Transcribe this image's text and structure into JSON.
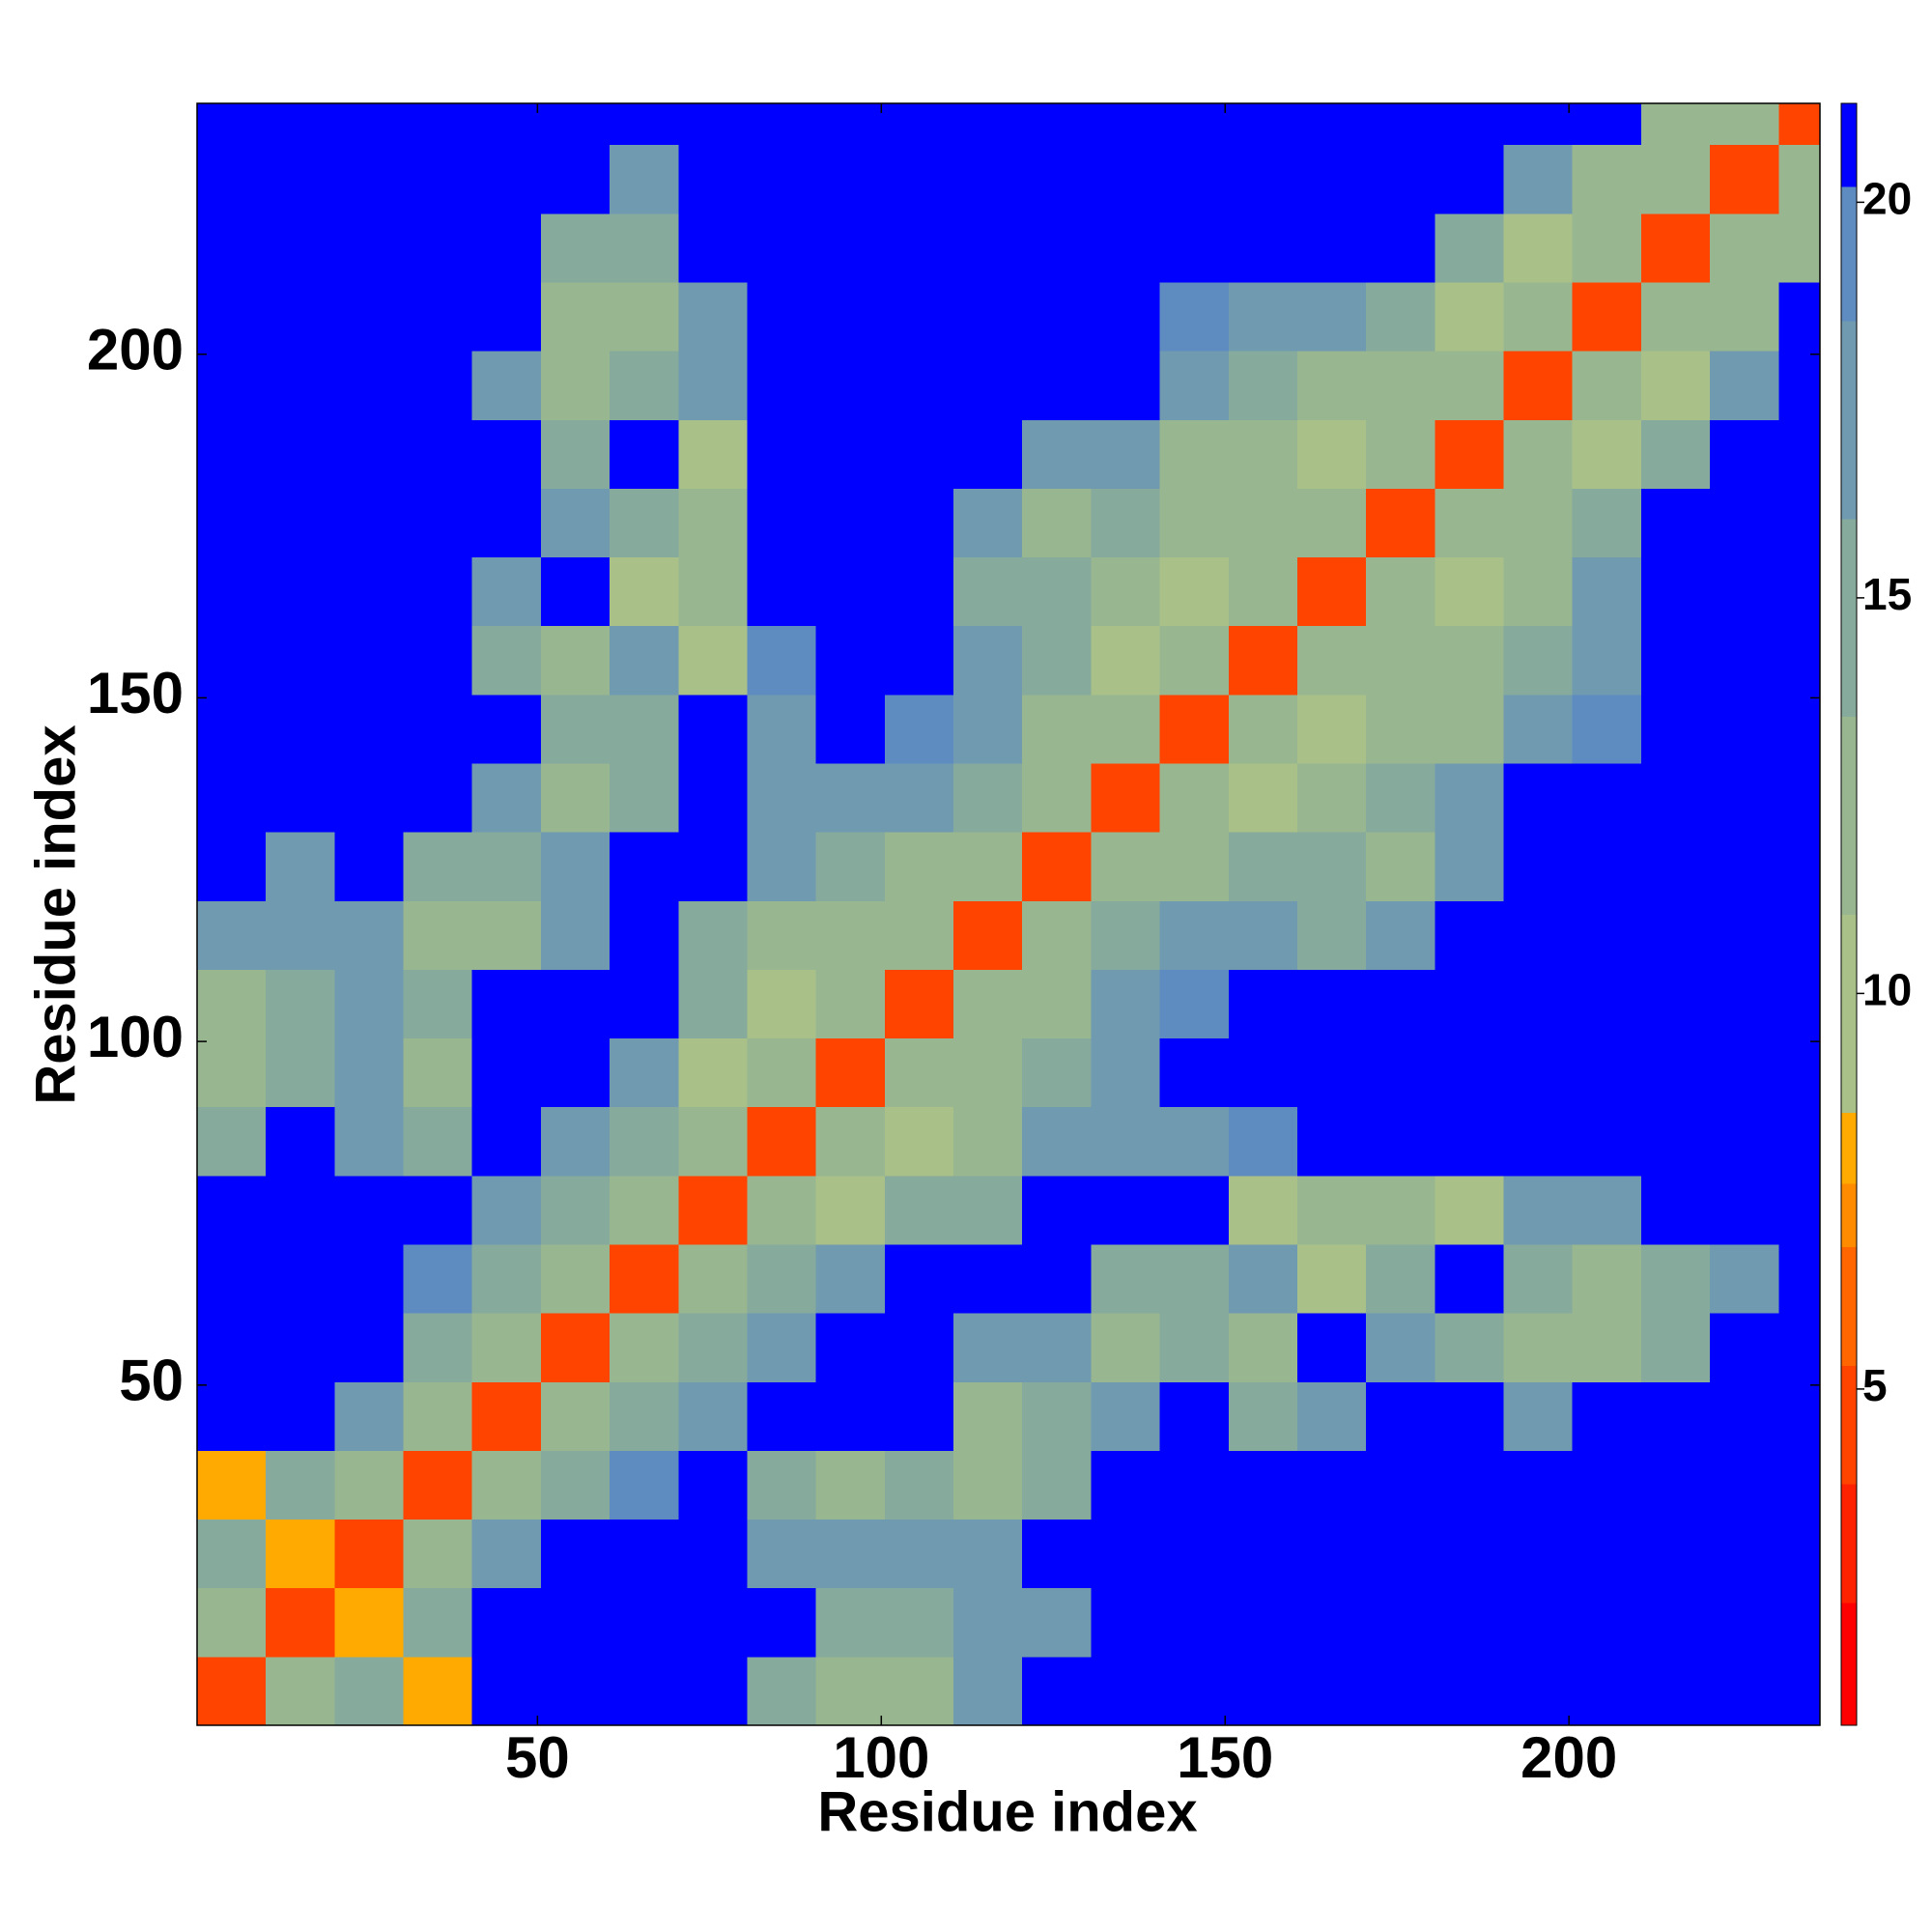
{
  "chart_data": {
    "type": "heatmap",
    "xlabel": "Residue index",
    "ylabel": "Residue index",
    "xbins": [
      0.5,
      10.5,
      20.5,
      30.5,
      40.5,
      50.5,
      60.5,
      70.5,
      80.5,
      90.5,
      100.5,
      110.5,
      120.5,
      130.5,
      140.5,
      150.5,
      160.5,
      170.5,
      180.5,
      190.5,
      200.5,
      210.5,
      220.5,
      230.5,
      236.5
    ],
    "ybins": [
      0.5,
      10.5,
      20.5,
      30.5,
      40.5,
      50.5,
      60.5,
      70.5,
      80.5,
      90.5,
      100.5,
      110.5,
      120.5,
      130.5,
      140.5,
      150.5,
      160.5,
      170.5,
      180.5,
      190.5,
      200.5,
      210.5,
      220.5,
      230.5,
      236.5
    ],
    "xlim": [
      0.5,
      236.5
    ],
    "ylim": [
      0.5,
      236.5
    ],
    "xticks": [
      50,
      100,
      150,
      200
    ],
    "yticks": [
      50,
      100,
      150,
      200
    ],
    "z": [
      [
        4,
        12,
        14,
        8,
        21,
        21,
        21,
        21,
        15,
        12,
        12,
        17,
        21,
        21,
        21,
        21,
        21,
        21,
        21,
        21,
        21,
        21,
        21,
        21
      ],
      [
        12,
        4,
        8,
        15,
        21,
        21,
        21,
        21,
        21,
        14,
        15,
        16,
        18,
        21,
        21,
        21,
        21,
        21,
        21,
        21,
        21,
        21,
        21,
        21
      ],
      [
        14,
        8,
        4,
        12,
        17,
        21,
        21,
        21,
        16,
        16,
        17,
        17,
        21,
        21,
        21,
        21,
        21,
        21,
        21,
        21,
        21,
        21,
        21,
        21
      ],
      [
        8,
        15,
        12,
        4,
        12,
        15,
        19,
        21,
        14,
        13,
        15,
        12,
        15,
        21,
        21,
        21,
        21,
        21,
        21,
        21,
        21,
        21,
        21,
        21
      ],
      [
        21,
        21,
        17,
        12,
        4,
        12,
        15,
        17,
        21,
        21,
        21,
        13,
        15,
        17,
        21,
        15,
        16,
        21,
        21,
        17,
        21,
        21,
        21,
        21
      ],
      [
        21,
        21,
        21,
        15,
        12,
        4,
        12,
        14,
        17,
        21,
        21,
        16,
        17,
        12,
        14,
        12,
        21,
        16,
        14,
        12,
        13,
        15,
        21,
        21
      ],
      [
        21,
        21,
        21,
        19,
        15,
        12,
        4,
        12,
        15,
        18,
        21,
        21,
        21,
        14,
        15,
        17,
        10,
        14,
        21,
        14,
        12,
        14,
        18,
        21
      ],
      [
        21,
        21,
        21,
        21,
        17,
        14,
        12,
        4,
        12,
        10,
        15,
        14,
        21,
        21,
        21,
        10,
        13,
        13,
        10,
        16,
        16,
        21,
        21,
        21
      ],
      [
        15,
        21,
        16,
        14,
        21,
        17,
        15,
        12,
        4,
        12,
        10,
        13,
        16,
        17,
        17,
        19,
        21,
        21,
        21,
        21,
        21,
        21,
        21,
        21
      ],
      [
        12,
        14,
        16,
        13,
        21,
        21,
        18,
        10,
        12,
        4,
        12,
        12,
        14,
        18,
        21,
        21,
        21,
        21,
        21,
        21,
        21,
        21,
        21,
        21
      ],
      [
        12,
        15,
        17,
        15,
        21,
        21,
        21,
        15,
        10,
        12,
        4,
        12,
        12,
        17,
        19,
        21,
        21,
        21,
        21,
        21,
        21,
        21,
        21,
        21
      ],
      [
        17,
        16,
        17,
        12,
        13,
        16,
        21,
        14,
        13,
        12,
        12,
        4,
        12,
        14,
        16,
        16,
        15,
        16,
        21,
        21,
        21,
        21,
        21,
        21
      ],
      [
        21,
        18,
        21,
        15,
        15,
        17,
        21,
        21,
        16,
        14,
        12,
        12,
        4,
        12,
        12,
        14,
        14,
        12,
        17,
        21,
        21,
        21,
        21,
        21
      ],
      [
        21,
        21,
        21,
        21,
        17,
        12,
        14,
        21,
        17,
        18,
        17,
        14,
        12,
        4,
        12,
        10,
        13,
        14,
        16,
        21,
        21,
        21,
        21,
        21
      ],
      [
        21,
        21,
        21,
        21,
        21,
        14,
        15,
        21,
        17,
        21,
        19,
        16,
        12,
        12,
        4,
        12,
        10,
        12,
        13,
        17,
        19,
        21,
        21,
        21
      ],
      [
        21,
        21,
        21,
        21,
        15,
        12,
        17,
        10,
        19,
        21,
        21,
        16,
        14,
        10,
        12,
        4,
        12,
        11,
        13,
        15,
        16,
        21,
        21,
        21
      ],
      [
        21,
        21,
        21,
        21,
        16,
        21,
        10,
        13,
        21,
        21,
        21,
        15,
        14,
        13,
        10,
        12,
        4,
        12,
        10,
        13,
        16,
        21,
        21,
        21
      ],
      [
        21,
        21,
        21,
        21,
        21,
        16,
        14,
        13,
        21,
        21,
        21,
        16,
        12,
        14,
        12,
        11,
        12,
        4,
        12,
        11,
        15,
        21,
        21,
        21
      ],
      [
        21,
        21,
        21,
        21,
        21,
        14,
        21,
        10,
        21,
        21,
        21,
        21,
        17,
        16,
        13,
        13,
        10,
        12,
        4,
        12,
        10,
        14,
        21,
        21
      ],
      [
        21,
        21,
        21,
        21,
        17,
        12,
        14,
        16,
        21,
        21,
        21,
        21,
        21,
        21,
        17,
        15,
        13,
        11,
        12,
        4,
        12,
        10,
        16,
        21
      ],
      [
        21,
        21,
        21,
        21,
        21,
        13,
        12,
        16,
        21,
        21,
        21,
        21,
        21,
        21,
        19,
        16,
        16,
        15,
        10,
        12,
        4,
        12,
        11,
        21
      ],
      [
        21,
        21,
        21,
        21,
        21,
        15,
        14,
        21,
        21,
        21,
        21,
        21,
        21,
        21,
        21,
        21,
        21,
        21,
        14,
        10,
        12,
        4,
        12,
        12
      ],
      [
        21,
        21,
        21,
        21,
        21,
        21,
        18,
        21,
        21,
        21,
        21,
        21,
        21,
        21,
        21,
        21,
        21,
        21,
        21,
        16,
        11,
        12,
        4,
        12
      ],
      [
        21,
        21,
        21,
        21,
        21,
        21,
        21,
        21,
        21,
        21,
        21,
        21,
        21,
        21,
        21,
        21,
        21,
        21,
        21,
        21,
        21,
        12,
        12,
        4
      ]
    ],
    "colorbar": {
      "lim": [
        0.75,
        21.25
      ],
      "ticks": [
        5,
        10,
        15,
        20
      ],
      "stops": [
        {
          "value": 0.75,
          "color": "#ff0000"
        },
        {
          "value": 2.3,
          "color": "#ff2200"
        },
        {
          "value": 3.8,
          "color": "#ff4400"
        },
        {
          "value": 5.3,
          "color": "#ff6600"
        },
        {
          "value": 6.8,
          "color": "#ff8c00"
        },
        {
          "value": 7.6,
          "color": "#ffaa00"
        },
        {
          "value": 8.5,
          "color": "#a9c088"
        },
        {
          "value": 11,
          "color": "#98b690"
        },
        {
          "value": 13.5,
          "color": "#86aa9c"
        },
        {
          "value": 16,
          "color": "#709ab0"
        },
        {
          "value": 18.5,
          "color": "#5f8cc0"
        },
        {
          "value": 20.2,
          "color": "#0000ff"
        }
      ]
    }
  }
}
